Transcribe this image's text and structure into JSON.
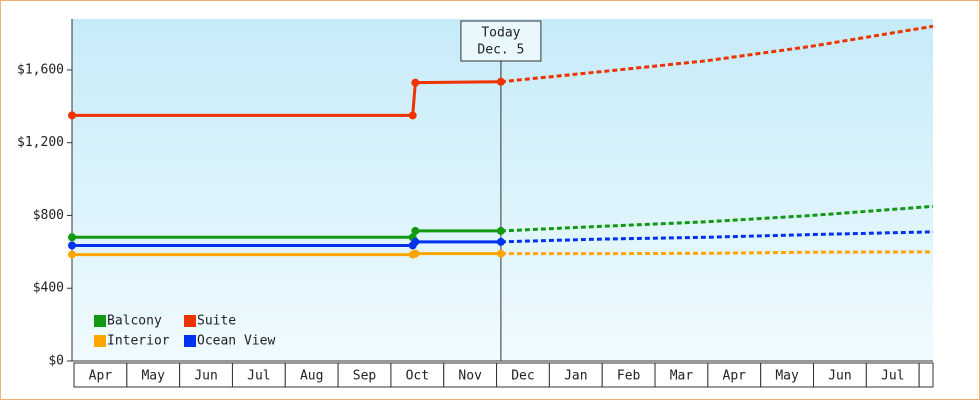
{
  "chart_data": {
    "type": "line",
    "xlim": [
      0,
      16.3
    ],
    "xticks": [
      {
        "value": 0.5,
        "label": "Apr"
      },
      {
        "value": 1.5,
        "label": "May"
      },
      {
        "value": 2.5,
        "label": "Jun"
      },
      {
        "value": 3.5,
        "label": "Jul"
      },
      {
        "value": 4.5,
        "label": "Aug"
      },
      {
        "value": 5.5,
        "label": "Sep"
      },
      {
        "value": 6.5,
        "label": "Oct"
      },
      {
        "value": 7.5,
        "label": "Nov"
      },
      {
        "value": 8.5,
        "label": "Dec"
      },
      {
        "value": 9.5,
        "label": "Jan"
      },
      {
        "value": 10.5,
        "label": "Feb"
      },
      {
        "value": 11.5,
        "label": "Mar"
      },
      {
        "value": 12.5,
        "label": "Apr"
      },
      {
        "value": 13.5,
        "label": "May"
      },
      {
        "value": 14.5,
        "label": "Jun"
      },
      {
        "value": 15.5,
        "label": "Jul"
      }
    ],
    "ylim": [
      0,
      1880
    ],
    "yticks": [
      {
        "value": 0,
        "label": "$0"
      },
      {
        "value": 400,
        "label": "$400"
      },
      {
        "value": 800,
        "label": "$800"
      },
      {
        "value": 1200,
        "label": "$1,200"
      },
      {
        "value": 1600,
        "label": "$1,600"
      }
    ],
    "today": {
      "x": 8.12,
      "label": [
        "Today",
        "Dec. 5"
      ]
    },
    "series": [
      {
        "name": "Balcony",
        "color": "#119911",
        "x": [
          0,
          6.45,
          6.5,
          8.12,
          10,
          12,
          14,
          16.3
        ],
        "values": [
          680,
          680,
          715,
          715,
          740,
          765,
          800,
          850
        ]
      },
      {
        "name": "Suite",
        "color": "#ee3300",
        "x": [
          0,
          6.45,
          6.5,
          8.12,
          10,
          12,
          14,
          16.3
        ],
        "values": [
          1350,
          1350,
          1530,
          1535,
          1590,
          1650,
          1730,
          1840
        ]
      },
      {
        "name": "Interior",
        "color": "#ffa500",
        "x": [
          0,
          6.45,
          6.5,
          8.12,
          10,
          12,
          14,
          16.3
        ],
        "values": [
          585,
          585,
          590,
          590,
          590,
          592,
          598,
          600
        ]
      },
      {
        "name": "Ocean View",
        "color": "#0033ee",
        "x": [
          0,
          6.45,
          6.5,
          8.12,
          10,
          12,
          14,
          16.3
        ],
        "values": [
          635,
          635,
          655,
          655,
          670,
          680,
          695,
          710
        ]
      }
    ]
  }
}
